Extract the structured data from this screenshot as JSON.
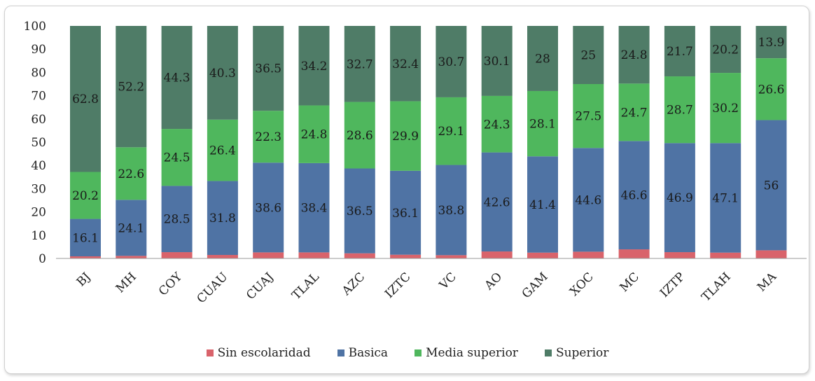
{
  "chart_data": {
    "type": "bar",
    "stacked": true,
    "categories": [
      "BJ",
      "MH",
      "COY",
      "CUAU",
      "CUAJ",
      "TLAL",
      "AZC",
      "IZTC",
      "VC",
      "AO",
      "GAM",
      "XOC",
      "MC",
      "IZTP",
      "TLAH",
      "MA"
    ],
    "ylim": [
      0,
      100
    ],
    "yticks": [
      0,
      10,
      20,
      30,
      40,
      50,
      60,
      70,
      80,
      90,
      100
    ],
    "series": [
      {
        "name": "Sin escolaridad",
        "color": "#d9636b",
        "values": [
          0.9,
          1.1,
          2.7,
          1.5,
          2.6,
          2.6,
          2.2,
          1.6,
          1.4,
          3.0,
          2.5,
          2.9,
          3.9,
          2.7,
          2.5,
          3.5
        ],
        "labels": [
          "",
          "",
          "",
          "",
          "",
          "",
          "",
          "",
          "",
          "",
          "",
          "",
          "",
          "",
          "",
          ""
        ]
      },
      {
        "name": "Basica",
        "color": "#4f73a4",
        "values": [
          16.1,
          24.1,
          28.5,
          31.8,
          38.6,
          38.4,
          36.5,
          36.1,
          38.8,
          42.6,
          41.4,
          44.6,
          46.6,
          46.9,
          47.1,
          56
        ],
        "labels": [
          "16.1",
          "24.1",
          "28.5",
          "31.8",
          "38.6",
          "38.4",
          "36.5",
          "36.1",
          "38.8",
          "42.6",
          "41.4",
          "44.6",
          "46.6",
          "46.9",
          "47.1",
          "56"
        ]
      },
      {
        "name": "Media superior",
        "color": "#4fb75d",
        "values": [
          20.2,
          22.6,
          24.5,
          26.4,
          22.3,
          24.8,
          28.6,
          29.9,
          29.1,
          24.3,
          28.1,
          27.5,
          24.7,
          28.7,
          30.2,
          26.6
        ],
        "labels": [
          "20.2",
          "22.6",
          "24.5",
          "26.4",
          "22.3",
          "24.8",
          "28.6",
          "29.9",
          "29.1",
          "24.3",
          "28.1",
          "27.5",
          "24.7",
          "28.7",
          "30.2",
          "26.6"
        ]
      },
      {
        "name": "Superior",
        "color": "#4f7c67",
        "values": [
          62.8,
          52.2,
          44.3,
          40.3,
          36.5,
          34.2,
          32.7,
          32.4,
          30.7,
          30.1,
          28,
          25,
          24.8,
          21.7,
          20.2,
          13.9
        ],
        "labels": [
          "62.8",
          "52.2",
          "44.3",
          "40.3",
          "36.5",
          "34.2",
          "32.7",
          "32.4",
          "30.7",
          "30.1",
          "28",
          "25",
          "24.8",
          "21.7",
          "20.2",
          "13.9"
        ]
      }
    ],
    "grid": false,
    "legend_position": "bottom"
  }
}
